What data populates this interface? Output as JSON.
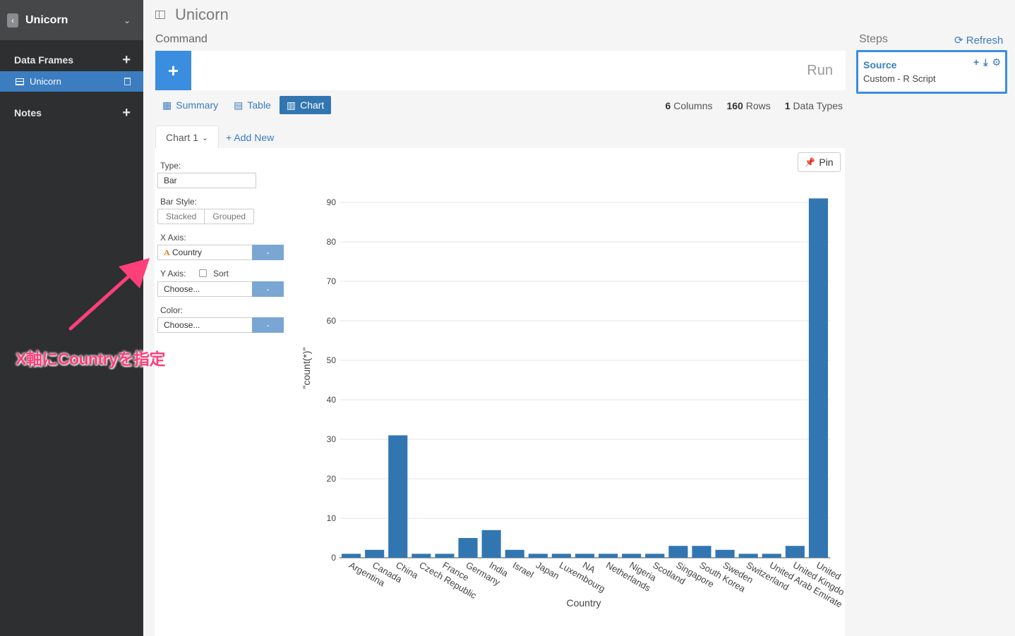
{
  "sidebar": {
    "title": "Unicorn",
    "sections": {
      "data_frames": "Data Frames",
      "notes": "Notes"
    },
    "items": [
      {
        "label": "Unicorn"
      }
    ]
  },
  "header": {
    "title": "Unicorn"
  },
  "command": {
    "label": "Command",
    "run_label": "Run"
  },
  "tabs": [
    {
      "label": "Summary"
    },
    {
      "label": "Table"
    },
    {
      "label": "Chart"
    }
  ],
  "stats": {
    "columns_count": "6",
    "columns_label": "Columns",
    "rows_count": "160",
    "rows_label": "Rows",
    "types_count": "1",
    "types_label": "Data Types"
  },
  "chart_tabs": {
    "current": "Chart 1",
    "add_new": "+ Add New"
  },
  "form": {
    "type_label": "Type:",
    "type_value": "Bar",
    "bar_style_label": "Bar Style:",
    "stacked": "Stacked",
    "grouped": "Grouped",
    "x_axis_label": "X Axis:",
    "x_axis_value": "Country",
    "x_axis_type_glyph": "A",
    "y_axis_label": "Y Axis:",
    "sort_label": "Sort",
    "y_axis_value": "Choose...",
    "color_label": "Color:",
    "color_value": "Choose...",
    "minus": "-"
  },
  "pin_label": "Pin",
  "steps": {
    "label": "Steps",
    "refresh": "Refresh",
    "source_title": "Source",
    "source_sub": "Custom - R Script"
  },
  "annotation": "X軸にCountryを指定",
  "colors": {
    "accent": "#3b7dc0",
    "bar": "#3276b1",
    "annotation": "#ff3f7a"
  },
  "chart_data": {
    "type": "bar",
    "xlabel": "Country",
    "ylabel": "\"count(*)\"",
    "ylim": [
      0,
      90
    ],
    "yticks": [
      0,
      10,
      20,
      30,
      40,
      50,
      60,
      70,
      80,
      90
    ],
    "categories": [
      "Argentina",
      "Canada",
      "China",
      "Czech Republic",
      "France",
      "Germany",
      "India",
      "Israel",
      "Japan",
      "Luxembourg",
      "NA",
      "Netherlands",
      "Nigeria",
      "Scotland",
      "Singapore",
      "South Korea",
      "Sweden",
      "Switzerland",
      "United Arab Emirates",
      "United Kingdom",
      "United States"
    ],
    "tick_labels": [
      "Argentina",
      "Canada",
      "China",
      "Czech Republic",
      "France",
      "Germany",
      "India",
      "Israel",
      "Japan",
      "Luxembourg",
      "NA",
      "Netherlands",
      "Nigeria",
      "Scotland",
      "Singapore",
      "South Korea",
      "Sweden",
      "Switzerland",
      "United Arab Emirate",
      "United Kingdo",
      "United"
    ],
    "values": [
      1,
      2,
      31,
      1,
      1,
      5,
      7,
      2,
      1,
      1,
      1,
      1,
      1,
      1,
      3,
      3,
      2,
      1,
      1,
      3,
      91
    ]
  }
}
